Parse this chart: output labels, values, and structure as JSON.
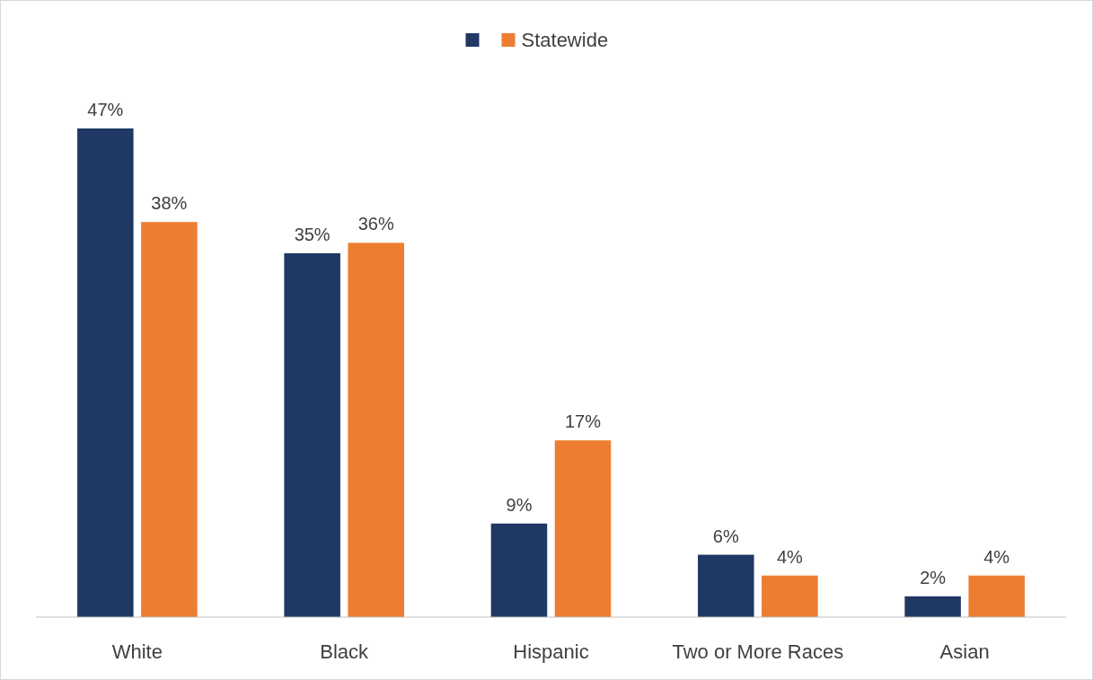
{
  "chart_data": {
    "type": "bar",
    "categories": [
      "White",
      "Black",
      "Hispanic",
      "Two or More Races",
      "Asian"
    ],
    "series": [
      {
        "color": "#203864",
        "values": [
          47,
          35,
          9,
          6,
          2
        ],
        "value_labels": [
          "47%",
          "35%",
          "9%",
          "6%",
          "2%"
        ]
      },
      {
        "name": "Statewide",
        "color": "#ed7d31",
        "values": [
          38,
          36,
          17,
          4,
          4
        ],
        "value_labels": [
          "38%",
          "36%",
          "17%",
          "4%",
          "4%"
        ]
      }
    ],
    "legend": "top"
  }
}
